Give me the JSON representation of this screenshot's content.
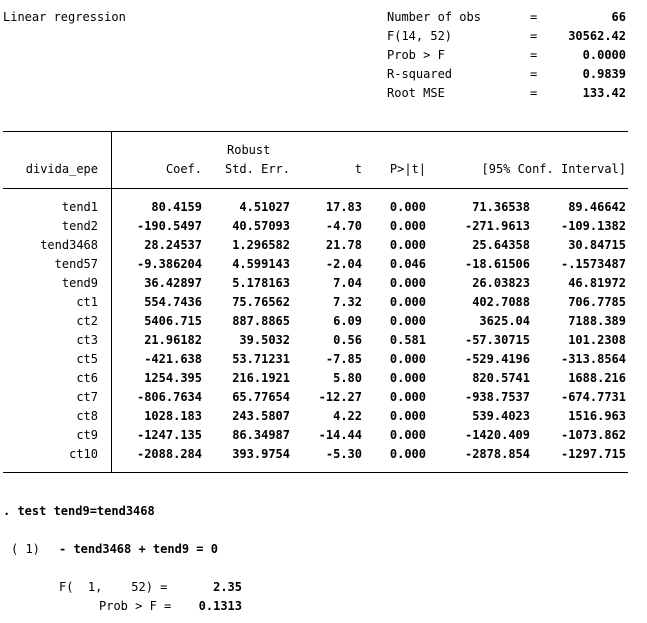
{
  "title": "Linear regression",
  "stats": [
    {
      "label": "Number of obs",
      "eq": "=",
      "value": "66"
    },
    {
      "label": "F(14, 52)",
      "eq": "=",
      "value": "30562.42"
    },
    {
      "label": "Prob > F",
      "eq": "=",
      "value": "0.0000"
    },
    {
      "label": "R-squared",
      "eq": "=",
      "value": "0.9839"
    },
    {
      "label": "Root MSE",
      "eq": "=",
      "value": "133.42"
    }
  ],
  "table": {
    "depvar": "divida_epe",
    "robust": "Robust",
    "headers": [
      "Coef.",
      "Std. Err.",
      "t",
      "P>|t|",
      "[95% Conf. Interval]"
    ],
    "rows": [
      [
        "tend1",
        "80.4159",
        "4.51027",
        "17.83",
        "0.000",
        "71.36538",
        "89.46642"
      ],
      [
        "tend2",
        "-190.5497",
        "40.57093",
        "-4.70",
        "0.000",
        "-271.9613",
        "-109.1382"
      ],
      [
        "tend3468",
        "28.24537",
        "1.296582",
        "21.78",
        "0.000",
        "25.64358",
        "30.84715"
      ],
      [
        "tend57",
        "-9.386204",
        "4.599143",
        "-2.04",
        "0.046",
        "-18.61506",
        "-.1573487"
      ],
      [
        "tend9",
        "36.42897",
        "5.178163",
        "7.04",
        "0.000",
        "26.03823",
        "46.81972"
      ],
      [
        "ct1",
        "554.7436",
        "75.76562",
        "7.32",
        "0.000",
        "402.7088",
        "706.7785"
      ],
      [
        "ct2",
        "5406.715",
        "887.8865",
        "6.09",
        "0.000",
        "3625.04",
        "7188.389"
      ],
      [
        "ct3",
        "21.96182",
        "39.5032",
        "0.56",
        "0.581",
        "-57.30715",
        "101.2308"
      ],
      [
        "ct5",
        "-421.638",
        "53.71231",
        "-7.85",
        "0.000",
        "-529.4196",
        "-313.8564"
      ],
      [
        "ct6",
        "1254.395",
        "216.1921",
        "5.80",
        "0.000",
        "820.5741",
        "1688.216"
      ],
      [
        "ct7",
        "-806.7634",
        "65.77654",
        "-12.27",
        "0.000",
        "-938.7537",
        "-674.7731"
      ],
      [
        "ct8",
        "1028.183",
        "243.5807",
        "4.22",
        "0.000",
        "539.4023",
        "1516.963"
      ],
      [
        "ct9",
        "-1247.135",
        "86.34987",
        "-14.44",
        "0.000",
        "-1420.409",
        "-1073.862"
      ],
      [
        "ct10",
        "-2088.284",
        "393.9754",
        "-5.30",
        "0.000",
        "-2878.854",
        "-1297.715"
      ]
    ]
  },
  "test": {
    "command": ". test tend9=tend3468",
    "constraint_num": "( 1)",
    "constraint": "- tend3468 + tend9 = 0",
    "f_label": "F(  1,    52) =",
    "f_value": "2.35",
    "p_label": "Prob > F =",
    "p_value": "0.1313"
  }
}
